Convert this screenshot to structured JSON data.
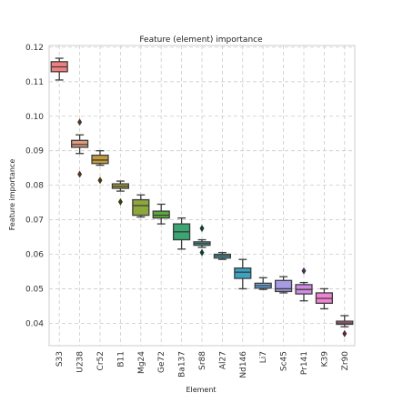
{
  "chart_data": {
    "type": "box",
    "title": "Feature (element) importance",
    "xlabel": "Element",
    "ylabel": "Feature importance",
    "ylim": [
      0.0335,
      0.1205
    ],
    "yticks": [
      0.04,
      0.05,
      0.06,
      0.07,
      0.08,
      0.09,
      0.1,
      0.11,
      0.12
    ],
    "ytick_labels": [
      "0.04",
      "0.05",
      "0.06",
      "0.07",
      "0.08",
      "0.09",
      "0.10",
      "0.11",
      "0.12"
    ],
    "grid": true,
    "categories": [
      "S33",
      "U238",
      "Cr52",
      "B11",
      "Mg24",
      "Ge72",
      "Ba137",
      "Sr88",
      "Al27",
      "Nd146",
      "Li7",
      "Sc45",
      "Pr141",
      "K39",
      "Zr90"
    ],
    "colors": [
      "#f17f7f",
      "#e19a7c",
      "#c69a3a",
      "#a9a638",
      "#8da73a",
      "#5aaa3a",
      "#3aa672",
      "#3aaa98",
      "#3aa8ac",
      "#3aa3c4",
      "#6aa9e2",
      "#a69ce6",
      "#d08ae4",
      "#ef82d2",
      "#f07ca4"
    ],
    "boxes": [
      {
        "whislo": 0.1105,
        "q1": 0.1129,
        "med": 0.1143,
        "q3": 0.1158,
        "whishi": 0.1168,
        "fliers": []
      },
      {
        "whislo": 0.0892,
        "q1": 0.091,
        "med": 0.0918,
        "q3": 0.093,
        "whishi": 0.0946,
        "fliers": [
          0.0983,
          0.0832
        ]
      },
      {
        "whislo": 0.0858,
        "q1": 0.0863,
        "med": 0.0873,
        "q3": 0.0887,
        "whishi": 0.09,
        "fliers": [
          0.0814
        ]
      },
      {
        "whislo": 0.0783,
        "q1": 0.0791,
        "med": 0.0797,
        "q3": 0.0804,
        "whishi": 0.0812,
        "fliers": [
          0.0752
        ]
      },
      {
        "whislo": 0.0708,
        "q1": 0.0713,
        "med": 0.0741,
        "q3": 0.0758,
        "whishi": 0.0772,
        "fliers": []
      },
      {
        "whislo": 0.0688,
        "q1": 0.0705,
        "med": 0.0713,
        "q3": 0.0725,
        "whishi": 0.0745,
        "fliers": []
      },
      {
        "whislo": 0.0615,
        "q1": 0.0642,
        "med": 0.0665,
        "q3": 0.0688,
        "whishi": 0.0705,
        "fliers": []
      },
      {
        "whislo": 0.062,
        "q1": 0.0626,
        "med": 0.0631,
        "q3": 0.0636,
        "whishi": 0.0642,
        "fliers": [
          0.0675,
          0.0605
        ]
      },
      {
        "whislo": 0.0585,
        "q1": 0.0589,
        "med": 0.0595,
        "q3": 0.06,
        "whishi": 0.0605,
        "fliers": []
      },
      {
        "whislo": 0.05,
        "q1": 0.053,
        "med": 0.0548,
        "q3": 0.056,
        "whishi": 0.0585,
        "fliers": []
      },
      {
        "whislo": 0.0498,
        "q1": 0.0502,
        "med": 0.0509,
        "q3": 0.0516,
        "whishi": 0.0532,
        "fliers": []
      },
      {
        "whislo": 0.0488,
        "q1": 0.0492,
        "med": 0.05,
        "q3": 0.0524,
        "whishi": 0.0535,
        "fliers": []
      },
      {
        "whislo": 0.0465,
        "q1": 0.0485,
        "med": 0.0498,
        "q3": 0.0512,
        "whishi": 0.0518,
        "fliers": [
          0.0552
        ]
      },
      {
        "whislo": 0.0442,
        "q1": 0.0458,
        "med": 0.0472,
        "q3": 0.0488,
        "whishi": 0.05,
        "fliers": []
      },
      {
        "whislo": 0.039,
        "q1": 0.0397,
        "med": 0.0401,
        "q3": 0.0406,
        "whishi": 0.0422,
        "fliers": [
          0.037
        ]
      }
    ]
  }
}
